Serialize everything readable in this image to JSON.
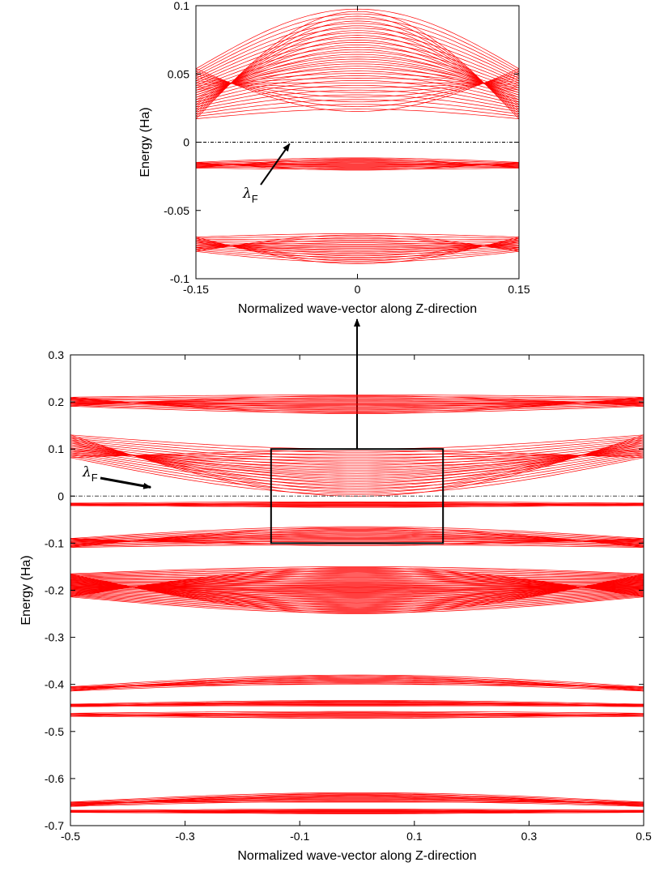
{
  "colors": {
    "bands": "#ff0000",
    "fermi_line": "#000000",
    "axes": "#000000"
  },
  "chart_data": [
    {
      "type": "line",
      "panel": "inset",
      "xlabel": "Normalized wave-vector along Z-direction",
      "ylabel": "Energy (Ha)",
      "xlim": [
        -0.15,
        0.15
      ],
      "ylim": [
        -0.1,
        0.1
      ],
      "x_ticks": [
        -0.15,
        0,
        0.15
      ],
      "x_tick_labels": [
        "-0.15",
        "0",
        "0.15"
      ],
      "y_ticks": [
        -0.1,
        -0.05,
        0,
        0.05,
        0.1
      ],
      "y_tick_labels": [
        "-0.1",
        "-0.05",
        "0",
        "0.05",
        "0.1"
      ],
      "fermi_level": 0,
      "annotation": {
        "symbol": "λ",
        "subscript": "F",
        "points_to": [
          -0.063,
          0.0
        ]
      },
      "band_groups": [
        {
          "name_hidden": true,
          "center": 0.06,
          "edge": 0.035,
          "count": 44,
          "spread": 0.075
        },
        {
          "center": -0.016,
          "edge": -0.017,
          "count": 16,
          "spread": 0.009
        },
        {
          "center": -0.078,
          "edge": -0.075,
          "count": 24,
          "spread": 0.022
        }
      ]
    },
    {
      "type": "line",
      "panel": "main",
      "xlabel": "Normalized wave-vector along Z-direction",
      "ylabel": "Energy (Ha)",
      "xlim": [
        -0.5,
        0.5
      ],
      "ylim": [
        -0.7,
        0.3
      ],
      "x_ticks": [
        -0.5,
        -0.3,
        -0.1,
        0.1,
        0.3,
        0.5
      ],
      "x_tick_labels": [
        "-0.5",
        "-0.3",
        "-0.1",
        "0.1",
        "0.3",
        "0.5"
      ],
      "y_ticks": [
        -0.7,
        -0.6,
        -0.5,
        -0.4,
        -0.3,
        -0.2,
        -0.1,
        0,
        0.1,
        0.2,
        0.3
      ],
      "y_tick_labels": [
        "-0.7",
        "-0.6",
        "-0.5",
        "-0.4",
        "-0.3",
        "-0.2",
        "-0.1",
        "0",
        "0.1",
        "0.2",
        "0.3"
      ],
      "fermi_level": 0,
      "zoom_box": {
        "x": [
          -0.15,
          0.15
        ],
        "y": [
          -0.1,
          0.1
        ]
      },
      "annotation": {
        "symbol": "λ",
        "subscript": "F",
        "points_to": [
          -0.36,
          0.005
        ]
      },
      "band_groups": [
        {
          "center": 0.195,
          "edge": 0.2,
          "count": 22,
          "spread": 0.04
        },
        {
          "center": 0.05,
          "edge": 0.105,
          "count": 30,
          "spread": 0.1
        },
        {
          "center": -0.018,
          "edge": -0.018,
          "count": 10,
          "spread": 0.012
        },
        {
          "center": -0.085,
          "edge": -0.1,
          "count": 22,
          "spread": 0.04
        },
        {
          "center": -0.2,
          "edge": -0.19,
          "count": 60,
          "spread": 0.1
        },
        {
          "center": -0.39,
          "edge": -0.41,
          "count": 12,
          "spread": 0.02
        },
        {
          "center": -0.44,
          "edge": -0.445,
          "count": 10,
          "spread": 0.012
        },
        {
          "center": -0.465,
          "edge": -0.465,
          "count": 10,
          "spread": 0.015
        },
        {
          "center": -0.64,
          "edge": -0.655,
          "count": 14,
          "spread": 0.02
        },
        {
          "center": -0.67,
          "edge": -0.67,
          "count": 10,
          "spread": 0.01
        }
      ]
    }
  ]
}
